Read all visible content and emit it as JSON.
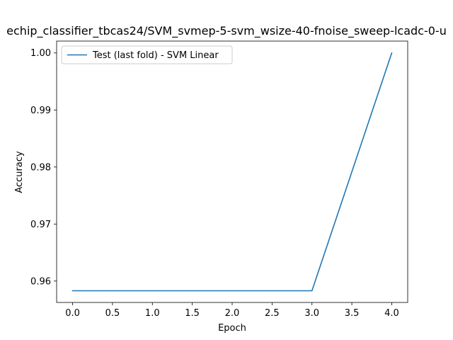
{
  "chart_data": {
    "type": "line",
    "title": "echip_classifier_tbcas24/SVM_svmep-5-svm_wsize-40-fnoise_sweep-lcadc-0-u",
    "xlabel": "Epoch",
    "ylabel": "Accuracy",
    "xlim": [
      -0.2,
      4.2
    ],
    "ylim": [
      0.95625,
      1.00208
    ],
    "x_ticks": [
      0.0,
      0.5,
      1.0,
      1.5,
      2.0,
      2.5,
      3.0,
      3.5,
      4.0
    ],
    "x_tick_labels": [
      "0.0",
      "0.5",
      "1.0",
      "1.5",
      "2.0",
      "2.5",
      "3.0",
      "3.5",
      "4.0"
    ],
    "y_ticks": [
      0.96,
      0.97,
      0.98,
      0.99,
      1.0
    ],
    "y_tick_labels": [
      "0.96",
      "0.97",
      "0.98",
      "0.99",
      "1.00"
    ],
    "grid": false,
    "legend_position": "top-left",
    "series": [
      {
        "name": "Test (last fold) - SVM Linear",
        "color": "#1f77b4",
        "x": [
          0,
          1,
          2,
          3,
          4
        ],
        "y": [
          0.9583,
          0.9583,
          0.9583,
          0.9583,
          1.0
        ]
      }
    ]
  }
}
